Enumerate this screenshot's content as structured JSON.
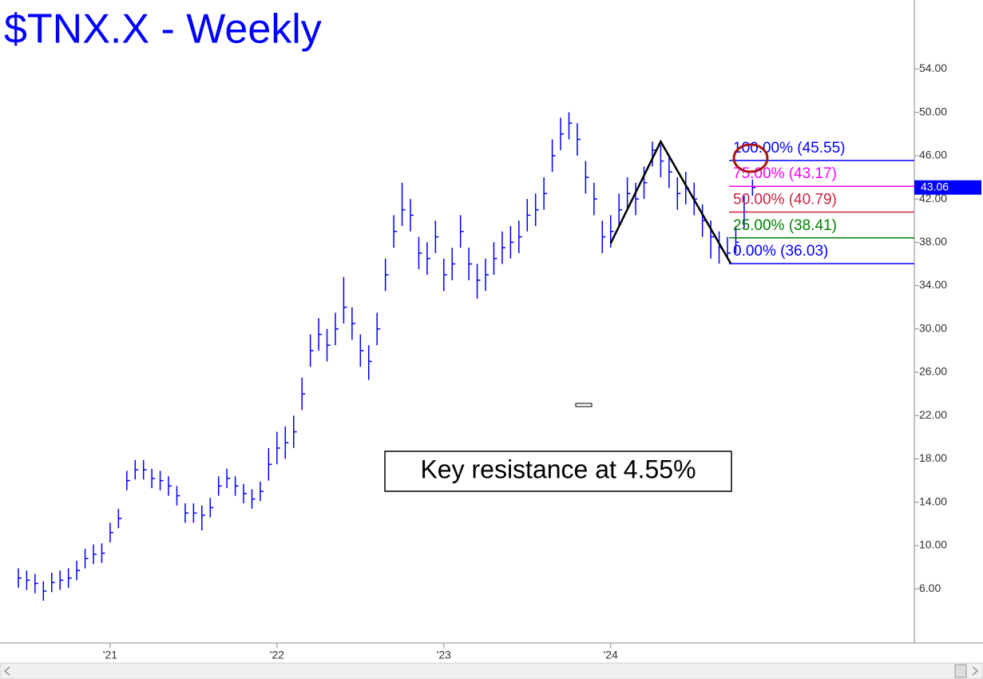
{
  "chart_data": {
    "type": "ohlc",
    "title": "$TNX.X - Weekly",
    "annotation": "Key resistance at 4.55%",
    "last_price": {
      "value": 43.06,
      "label": "43.06"
    },
    "xlim": [
      2020.34,
      2025.82
    ],
    "ylim": [
      1,
      60
    ],
    "xticks": [
      {
        "value": 2021,
        "label": "'21"
      },
      {
        "value": 2022,
        "label": "'22"
      },
      {
        "value": 2023,
        "label": "'23"
      },
      {
        "value": 2024,
        "label": "'24"
      }
    ],
    "yticks": [
      {
        "value": 6,
        "label": "6.00"
      },
      {
        "value": 10,
        "label": "10.00"
      },
      {
        "value": 14,
        "label": "14.00"
      },
      {
        "value": 18,
        "label": "18.00"
      },
      {
        "value": 22,
        "label": "22.00"
      },
      {
        "value": 26,
        "label": "26.00"
      },
      {
        "value": 30,
        "label": "30.00"
      },
      {
        "value": 34,
        "label": "34.00"
      },
      {
        "value": 38,
        "label": "38.00"
      },
      {
        "value": 42,
        "label": "42.00"
      },
      {
        "value": 46,
        "label": "46.00"
      },
      {
        "value": 50,
        "label": "50.00"
      },
      {
        "value": 54,
        "label": "54.00"
      }
    ],
    "series": [
      {
        "color": "#0000ff",
        "x": [
          2020.45,
          2020.5,
          2020.55,
          2020.6,
          2020.65,
          2020.7,
          2020.75,
          2020.8,
          2020.85,
          2020.9,
          2020.95,
          2021.0,
          2021.05,
          2021.1,
          2021.15,
          2021.2,
          2021.25,
          2021.3,
          2021.35,
          2021.4,
          2021.45,
          2021.5,
          2021.55,
          2021.6,
          2021.65,
          2021.7,
          2021.75,
          2021.8,
          2021.85,
          2021.9,
          2021.95,
          2022.0,
          2022.05,
          2022.1,
          2022.15,
          2022.2,
          2022.25,
          2022.3,
          2022.35,
          2022.4,
          2022.45,
          2022.5,
          2022.55,
          2022.6,
          2022.65,
          2022.7,
          2022.75,
          2022.8,
          2022.85,
          2022.9,
          2022.95,
          2023.0,
          2023.05,
          2023.1,
          2023.15,
          2023.2,
          2023.25,
          2023.3,
          2023.35,
          2023.4,
          2023.45,
          2023.5,
          2023.55,
          2023.6,
          2023.65,
          2023.7,
          2023.75,
          2023.8,
          2023.85,
          2023.9,
          2023.95,
          2024.0,
          2024.05,
          2024.1,
          2024.15,
          2024.2,
          2024.25,
          2024.3,
          2024.35,
          2024.4,
          2024.45,
          2024.5,
          2024.55,
          2024.6,
          2024.65,
          2024.7,
          2024.75,
          2024.8,
          2024.85
        ],
        "high": [
          7.9,
          7.7,
          7.4,
          6.7,
          7.5,
          7.7,
          7.9,
          8.6,
          9.7,
          10.1,
          10.2,
          12.1,
          13.4,
          16.9,
          17.9,
          17.9,
          17.1,
          16.9,
          16.4,
          15.5,
          13.9,
          13.9,
          13.7,
          14.4,
          16.4,
          17.1,
          16.4,
          15.7,
          15.2,
          15.9,
          19.0,
          20.5,
          21.0,
          22.0,
          25.5,
          29.5,
          31.0,
          30.0,
          31.5,
          34.8,
          32.0,
          29.5,
          28.5,
          31.5,
          36.5,
          40.5,
          43.5,
          42.0,
          38.5,
          38.0,
          40.0,
          36.5,
          37.5,
          40.5,
          37.5,
          36.0,
          36.5,
          38.0,
          39.0,
          39.5,
          40.0,
          42.0,
          42.5,
          44.0,
          47.5,
          49.5,
          50.0,
          49.0,
          45.5,
          43.5,
          40.0,
          40.5,
          42.5,
          44.0,
          43.5,
          45.0,
          47.3,
          47.0,
          46.0,
          44.0,
          44.5,
          43.5,
          41.5,
          40.0,
          39.0,
          38.5,
          39.5,
          42.3,
          43.8
        ],
        "low": [
          6.1,
          5.9,
          5.6,
          4.9,
          5.7,
          5.9,
          6.1,
          6.8,
          7.9,
          8.3,
          8.4,
          10.3,
          11.6,
          15.1,
          16.1,
          16.1,
          15.3,
          15.1,
          14.6,
          13.7,
          12.1,
          12.1,
          11.4,
          12.6,
          14.6,
          15.3,
          14.6,
          13.9,
          13.4,
          14.1,
          16.0,
          17.5,
          18.0,
          19.0,
          22.5,
          26.5,
          28.0,
          27.0,
          28.5,
          30.5,
          29.0,
          26.5,
          25.3,
          28.5,
          33.5,
          37.5,
          39.5,
          39.0,
          35.5,
          35.0,
          37.0,
          33.5,
          34.5,
          37.5,
          34.5,
          32.8,
          33.5,
          35.0,
          36.0,
          36.5,
          37.0,
          39.0,
          39.5,
          41.0,
          44.5,
          46.5,
          47.5,
          46.0,
          42.5,
          40.5,
          37.0,
          37.5,
          39.5,
          41.0,
          40.5,
          42.0,
          45.0,
          44.0,
          43.0,
          41.0,
          41.5,
          40.5,
          38.5,
          36.5,
          36.03,
          36.5,
          37.0,
          39.3,
          42.3
        ],
        "close": [
          7.0,
          6.8,
          6.5,
          5.8,
          6.6,
          6.8,
          7.0,
          7.7,
          8.8,
          9.2,
          9.3,
          11.2,
          12.5,
          16.0,
          17.0,
          17.0,
          16.2,
          16.0,
          15.5,
          14.6,
          13.0,
          13.0,
          12.8,
          13.5,
          15.5,
          16.2,
          15.5,
          14.8,
          14.3,
          15.0,
          17.5,
          19.0,
          19.5,
          20.5,
          24.0,
          28.0,
          29.5,
          28.5,
          30.0,
          32.0,
          30.5,
          28.0,
          27.0,
          30.0,
          35.0,
          39.0,
          41.0,
          40.5,
          37.0,
          36.5,
          38.5,
          35.0,
          36.0,
          39.0,
          36.0,
          34.5,
          35.0,
          36.5,
          37.5,
          38.0,
          38.5,
          40.5,
          41.0,
          42.5,
          46.0,
          48.0,
          49.0,
          47.5,
          44.0,
          42.0,
          38.5,
          39.0,
          41.0,
          42.5,
          42.0,
          43.5,
          46.5,
          45.5,
          44.5,
          42.5,
          43.0,
          42.0,
          40.0,
          38.5,
          37.5,
          37.0,
          38.0,
          40.8,
          43.06
        ]
      }
    ],
    "zigzag": {
      "color": "#000000",
      "x": [
        2024.0,
        2024.3,
        2024.72
      ],
      "y": [
        37.9,
        47.3,
        36.03
      ]
    },
    "levels": [
      {
        "label": "100.00% (45.55)",
        "value": 45.55,
        "color": "#0000ff"
      },
      {
        "label": "75.00% (43.17)",
        "value": 43.17,
        "color": "#ff00ff"
      },
      {
        "label": "50.00% (40.79)",
        "value": 40.79,
        "color": "#cc2244"
      },
      {
        "label": "25.00% (38.41)",
        "value": 38.41,
        "color": "#008000"
      },
      {
        "label": "0.00% (36.03)",
        "value": 36.03,
        "color": "#0000ff"
      }
    ]
  }
}
